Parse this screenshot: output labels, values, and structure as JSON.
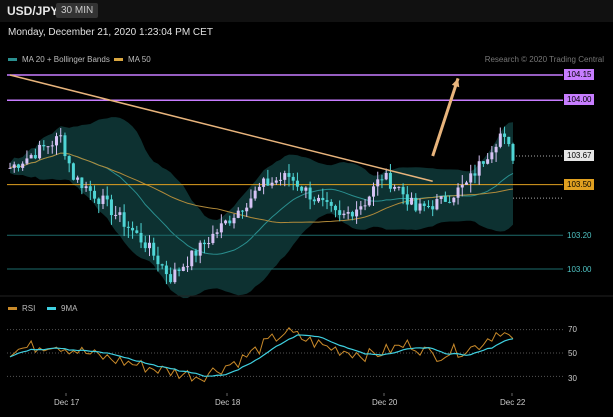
{
  "header": {
    "symbol": "USD/JPY",
    "interval": "30 MIN"
  },
  "datetime": "Monday, December 21, 2020 1:23:04 PM CET",
  "legend": {
    "bb": "MA 20 + Bollinger Bands",
    "ma50": "MA 50"
  },
  "credit": "Research © 2020 Trading Central",
  "rsi_legend": {
    "rsi": "RSI",
    "ma9": "9MA"
  },
  "colors": {
    "bullish": "#d6c3f5",
    "bearish": "#4fd5d5",
    "resistance": "#c77dff",
    "pivot": "#e0a020",
    "support": "#1d6b6b",
    "trend": "#e8b47c"
  },
  "price_labels": {
    "r2": "104.15",
    "r1": "104.00",
    "last": "103.67",
    "pivot": "103.50",
    "s1": "103.20",
    "s2": "103.00"
  },
  "rsi_labels": {
    "l70": "70",
    "l50": "50",
    "l30": "30"
  },
  "chart_data": {
    "type": "candlestick",
    "x_labels": [
      "Dec 17",
      "Dec 18",
      "Dec 20",
      "Dec 22"
    ],
    "y_range": [
      102.9,
      104.25
    ],
    "levels": {
      "resistance": [
        104.15,
        104.0
      ],
      "pivot": 103.5,
      "support": [
        103.2,
        103.0
      ],
      "last": 103.67
    },
    "trendline": [
      [
        0,
        104.15
      ],
      [
        100,
        103.52
      ]
    ],
    "target_arrow": [
      [
        100,
        103.67
      ],
      [
        106,
        104.13
      ]
    ],
    "anchors": [
      [
        0,
        103.6
      ],
      [
        8,
        103.72
      ],
      [
        12,
        103.78
      ],
      [
        15,
        103.55
      ],
      [
        22,
        103.4
      ],
      [
        32,
        103.15
      ],
      [
        38,
        102.95
      ],
      [
        44,
        103.1
      ],
      [
        52,
        103.3
      ],
      [
        60,
        103.5
      ],
      [
        66,
        103.55
      ],
      [
        72,
        103.42
      ],
      [
        78,
        103.3
      ],
      [
        84,
        103.4
      ],
      [
        88,
        103.55
      ],
      [
        92,
        103.48
      ],
      [
        96,
        103.35
      ],
      [
        102,
        103.4
      ],
      [
        108,
        103.5
      ],
      [
        116,
        103.8
      ],
      [
        119,
        103.67
      ]
    ],
    "rsi_range": [
      20,
      80
    ],
    "rsi_anchors": [
      [
        0,
        52
      ],
      [
        10,
        58
      ],
      [
        20,
        48
      ],
      [
        35,
        36
      ],
      [
        45,
        30
      ],
      [
        55,
        45
      ],
      [
        65,
        68
      ],
      [
        75,
        55
      ],
      [
        85,
        48
      ],
      [
        95,
        58
      ],
      [
        100,
        48
      ],
      [
        110,
        55
      ],
      [
        116,
        70
      ],
      [
        119,
        60
      ]
    ]
  }
}
